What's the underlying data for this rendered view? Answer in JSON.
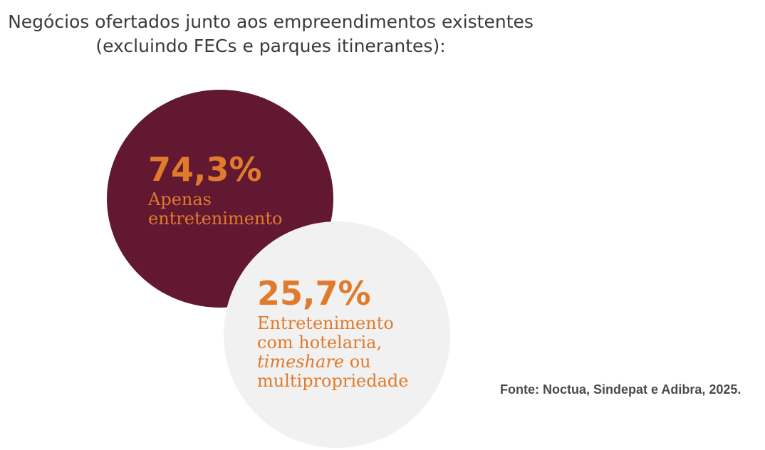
{
  "title": {
    "line1": "Negócios ofertados junto aos empreendimentos existentes",
    "line2": "(excluindo FECs e parques itinerantes):"
  },
  "colors": {
    "primary_circle": "#611830",
    "secondary_circle": "#f1f1f1",
    "accent_text": "#e07b2d",
    "title_text": "#3a3a3a"
  },
  "chart_data": {
    "type": "pie",
    "title": "Negócios ofertados junto aos empreendimentos existentes (excluindo FECs e parques itinerantes):",
    "unit": "%",
    "segments": [
      {
        "value": 74.3,
        "value_label": "74,3%",
        "label_lines": [
          "Apenas",
          "entretenimento"
        ],
        "color": "#611830"
      },
      {
        "value": 25.7,
        "value_label": "25,7%",
        "label_lines": [
          "Entretenimento",
          "com hotelaria,",
          "timeshare",
          "ou",
          "multipropriedade"
        ],
        "color": "#f1f1f1"
      }
    ]
  },
  "source": "Fonte: Noctua, Sindepat e Adibra, 2025."
}
